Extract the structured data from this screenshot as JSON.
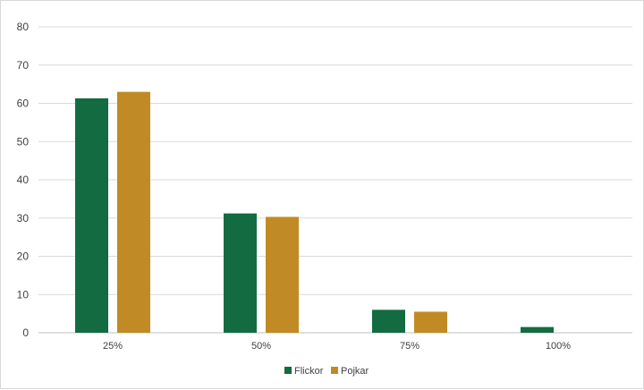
{
  "chart_data": {
    "type": "bar",
    "title": "",
    "xlabel": "",
    "ylabel": "",
    "categories": [
      "25%",
      "50%",
      "75%",
      "100%"
    ],
    "series": [
      {
        "name": "Flickor",
        "values": [
          61.3,
          31.2,
          6.0,
          1.5
        ],
        "color": "#136b41"
      },
      {
        "name": "Pojkar",
        "values": [
          63.0,
          30.3,
          5.5,
          0
        ],
        "color": "#c08b24"
      }
    ],
    "ylim": [
      0,
      80
    ],
    "yticks": [
      "0",
      "10",
      "20",
      "30",
      "40",
      "50",
      "60",
      "70",
      "80"
    ],
    "grid": true,
    "legend_position": "bottom"
  }
}
